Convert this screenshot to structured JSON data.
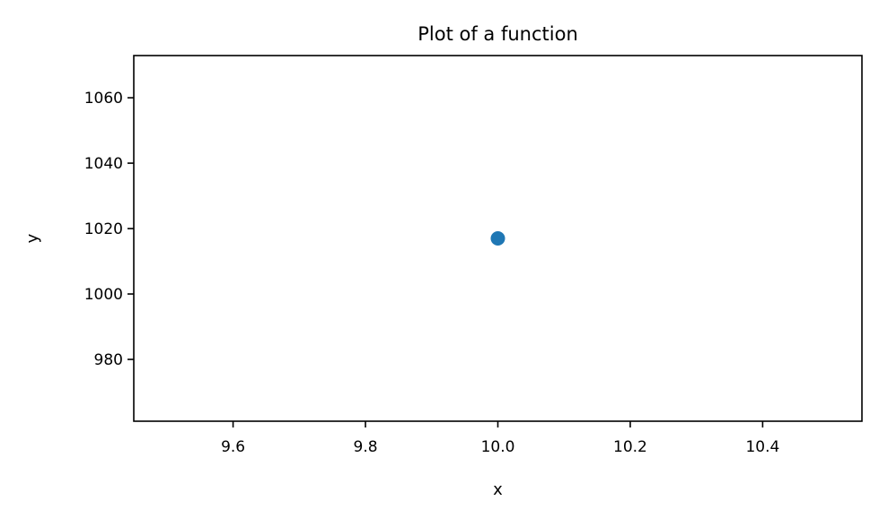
{
  "chart_data": {
    "type": "scatter",
    "title": "Plot of a function",
    "xlabel": "x",
    "ylabel": "y",
    "xlim": [
      9.45,
      10.55
    ],
    "ylim": [
      961.1,
      1072.9
    ],
    "xticks": [
      9.6,
      9.8,
      10.0,
      10.2,
      10.4
    ],
    "xtick_labels": [
      "9.6",
      "9.8",
      "10.0",
      "10.2",
      "10.4"
    ],
    "yticks": [
      980,
      1000,
      1020,
      1040,
      1060
    ],
    "ytick_labels": [
      "980",
      "1000",
      "1020",
      "1040",
      "1060"
    ],
    "grid": false,
    "series": [
      {
        "color": "#1f77b4",
        "points": [
          {
            "x": 10.0,
            "y": 1017
          }
        ]
      }
    ]
  }
}
